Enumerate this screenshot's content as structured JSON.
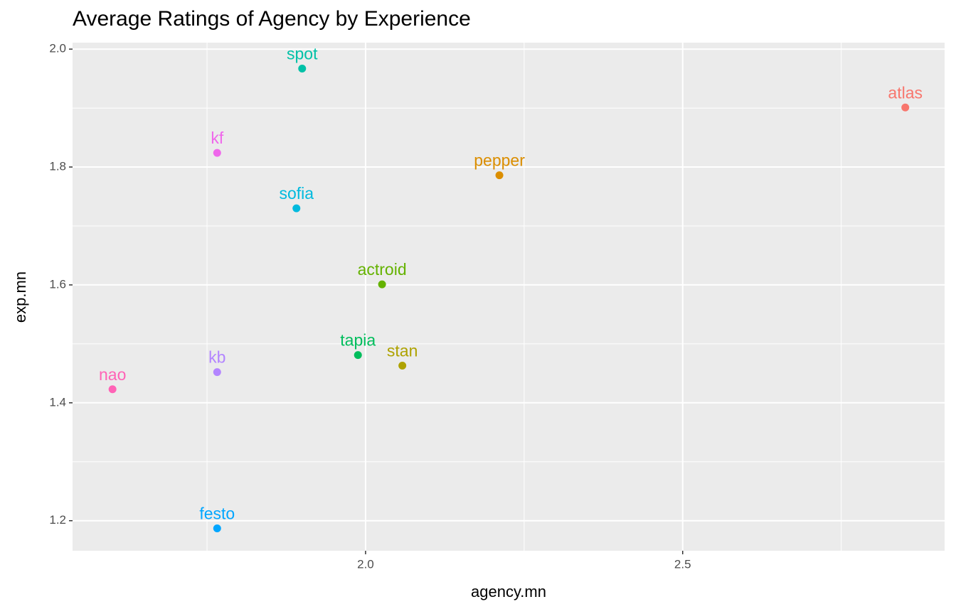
{
  "chart_data": {
    "type": "scatter",
    "title": "Average Ratings of Agency by Experience",
    "x_label": "agency.mn",
    "y_label": "exp.mn",
    "labels": [
      "atlas",
      "pepper",
      "stan",
      "actroid",
      "tapia",
      "spot",
      "sofia",
      "festo",
      "kb",
      "kf",
      "nao"
    ],
    "x": [
      2.851,
      2.211,
      2.058,
      2.026,
      1.988,
      1.9,
      1.891,
      1.766,
      1.766,
      1.766,
      1.601
    ],
    "y": [
      1.901,
      1.786,
      1.463,
      1.601,
      1.481,
      1.967,
      1.73,
      1.187,
      1.452,
      1.824,
      1.423
    ],
    "colors": [
      "#F8766D",
      "#DB8E00",
      "#AEA200",
      "#64B200",
      "#00BD5C",
      "#00C1A7",
      "#00BADE",
      "#00A6FF",
      "#B385FF",
      "#EF67EB",
      "#FF63B6"
    ],
    "xlim": [
      1.538,
      2.913
    ],
    "ylim": [
      1.149,
      2.011
    ],
    "xticks": [
      {
        "value": 2,
        "label": "2.0"
      },
      2.5
    ],
    "yticks": [
      1.2,
      1.4,
      1.6,
      1.8,
      {
        "value": 2,
        "label": "2.0"
      }
    ],
    "xminor": [
      1.75,
      2.25,
      2.75
    ],
    "yminor": [
      1.3,
      1.5,
      1.7,
      1.9
    ],
    "grid": true
  }
}
